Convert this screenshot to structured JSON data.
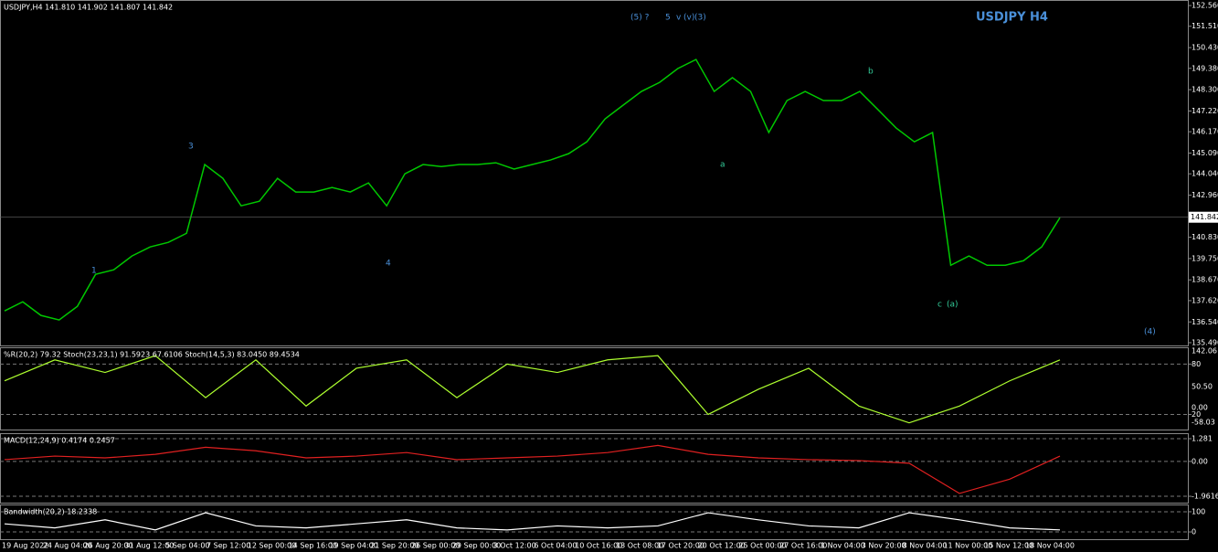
{
  "chart_data": [
    {
      "type": "line",
      "header": "USDJPY,H4  141.810 141.902 141.807 141.842",
      "title": "USDJPY H4",
      "color": "#00c800",
      "values": [
        137.1,
        137.56,
        136.87,
        136.64,
        137.33,
        138.95,
        139.18,
        139.88,
        140.34,
        140.57,
        141.03,
        144.51,
        143.81,
        142.42,
        142.65,
        143.81,
        143.12,
        143.12,
        143.35,
        143.12,
        143.58,
        142.42,
        144.04,
        144.51,
        144.41,
        144.51,
        144.51,
        144.6,
        144.28,
        144.51,
        144.74,
        145.06,
        145.66,
        146.82,
        147.52,
        148.21,
        148.67,
        149.37,
        149.83,
        148.21,
        148.91,
        148.21,
        146.13,
        147.75,
        148.21,
        147.75,
        147.75,
        148.21,
        147.29,
        146.36,
        145.66,
        146.13,
        139.41,
        139.88,
        139.41,
        139.41,
        139.64,
        140.34,
        141.82
      ],
      "ylim": [
        135.35,
        152.84
      ],
      "yticks": [
        {
          "value": 152.56,
          "label": "152.560"
        },
        {
          "value": 151.51,
          "label": "151.510"
        },
        {
          "value": 150.43,
          "label": "150.430"
        },
        {
          "value": 149.38,
          "label": "149.380"
        },
        {
          "value": 148.3,
          "label": "148.300"
        },
        {
          "value": 147.22,
          "label": "147.220"
        },
        {
          "value": 146.17,
          "label": "146.170"
        },
        {
          "value": 145.09,
          "label": "145.090"
        },
        {
          "value": 144.04,
          "label": "144.040"
        },
        {
          "value": 142.96,
          "label": "142.960"
        },
        {
          "value": 140.83,
          "label": "140.830"
        },
        {
          "value": 139.75,
          "label": "139.750"
        },
        {
          "value": 138.67,
          "label": "138.670"
        },
        {
          "value": 137.62,
          "label": "137.620"
        },
        {
          "value": 136.54,
          "label": "136.540"
        },
        {
          "value": 135.49,
          "label": "135.490"
        }
      ],
      "current_price": {
        "value": 141.842,
        "label": "141.842"
      },
      "annotations": [
        "(5) ?",
        "5",
        "v",
        "(v)",
        "(3)",
        "3",
        "4",
        "1",
        "a",
        "b",
        "c",
        "(a)",
        "(4)"
      ],
      "x_axis_labels": [
        "19 Aug 2022",
        "24 Aug 04:00",
        "26 Aug 20:00",
        "31 Aug 12:00",
        "5 Sep 04:00",
        "7 Sep 12:00",
        "12 Sep 00:00",
        "14 Sep 16:00",
        "19 Sep 04:00",
        "21 Sep 20:00",
        "26 Sep 00:00",
        "29 Sep 00:00",
        "3 Oct 12:00",
        "6 Oct 04:00",
        "10 Oct 16:00",
        "13 Oct 08:00",
        "17 Oct 20:00",
        "20 Oct 12:00",
        "25 Oct 00:00",
        "27 Oct 16:00",
        "1 Nov 04:00",
        "3 Nov 20:00",
        "8 Nov 04:00",
        "11 Nov 00:00",
        "15 Nov 12:00",
        "18 Nov 04:00"
      ]
    },
    {
      "type": "line",
      "title": "%R(20,2) 79.32  Stoch(23,23,1) 91.5923 67.6106  Stoch(14,5,3) 83.0450 89.4534",
      "color": "#adff2f",
      "values": [
        60,
        85,
        70,
        90,
        40,
        85,
        30,
        75,
        85,
        40,
        80,
        70,
        85,
        90,
        20,
        50,
        75,
        30,
        10,
        30,
        60,
        85
      ],
      "ylim": [
        2,
        100
      ],
      "yticks": [
        80,
        20
      ],
      "side_labels": [
        "142.06",
        "50.50",
        "0.00",
        "-58.03"
      ]
    },
    {
      "type": "line",
      "title": "MACD(12,24,9) 0.4174 0.2457",
      "color": "#e02020",
      "values": [
        0.1,
        0.3,
        0.2,
        0.4,
        0.8,
        0.6,
        0.2,
        0.3,
        0.5,
        0.1,
        0.2,
        0.3,
        0.5,
        0.9,
        0.4,
        0.2,
        0.1,
        0.05,
        -0.1,
        -1.8,
        -1.0,
        0.3
      ],
      "ylim": [
        -2.32,
        1.59
      ],
      "yticks": [
        {
          "value": 1.281,
          "label": "1.281"
        },
        {
          "value": 0,
          "label": "0.00"
        },
        {
          "value": -1.9616,
          "label": "-1.9616"
        }
      ]
    },
    {
      "type": "line",
      "title": "Bandwidth(20,2) 18.2338",
      "color": "#ffffff",
      "values": [
        40,
        20,
        60,
        10,
        95,
        30,
        20,
        40,
        60,
        20,
        10,
        30,
        20,
        30,
        95,
        60,
        30,
        20,
        95,
        60,
        20,
        10
      ],
      "ylim": [
        -36,
        136
      ],
      "yticks": [
        100,
        0
      ]
    }
  ]
}
